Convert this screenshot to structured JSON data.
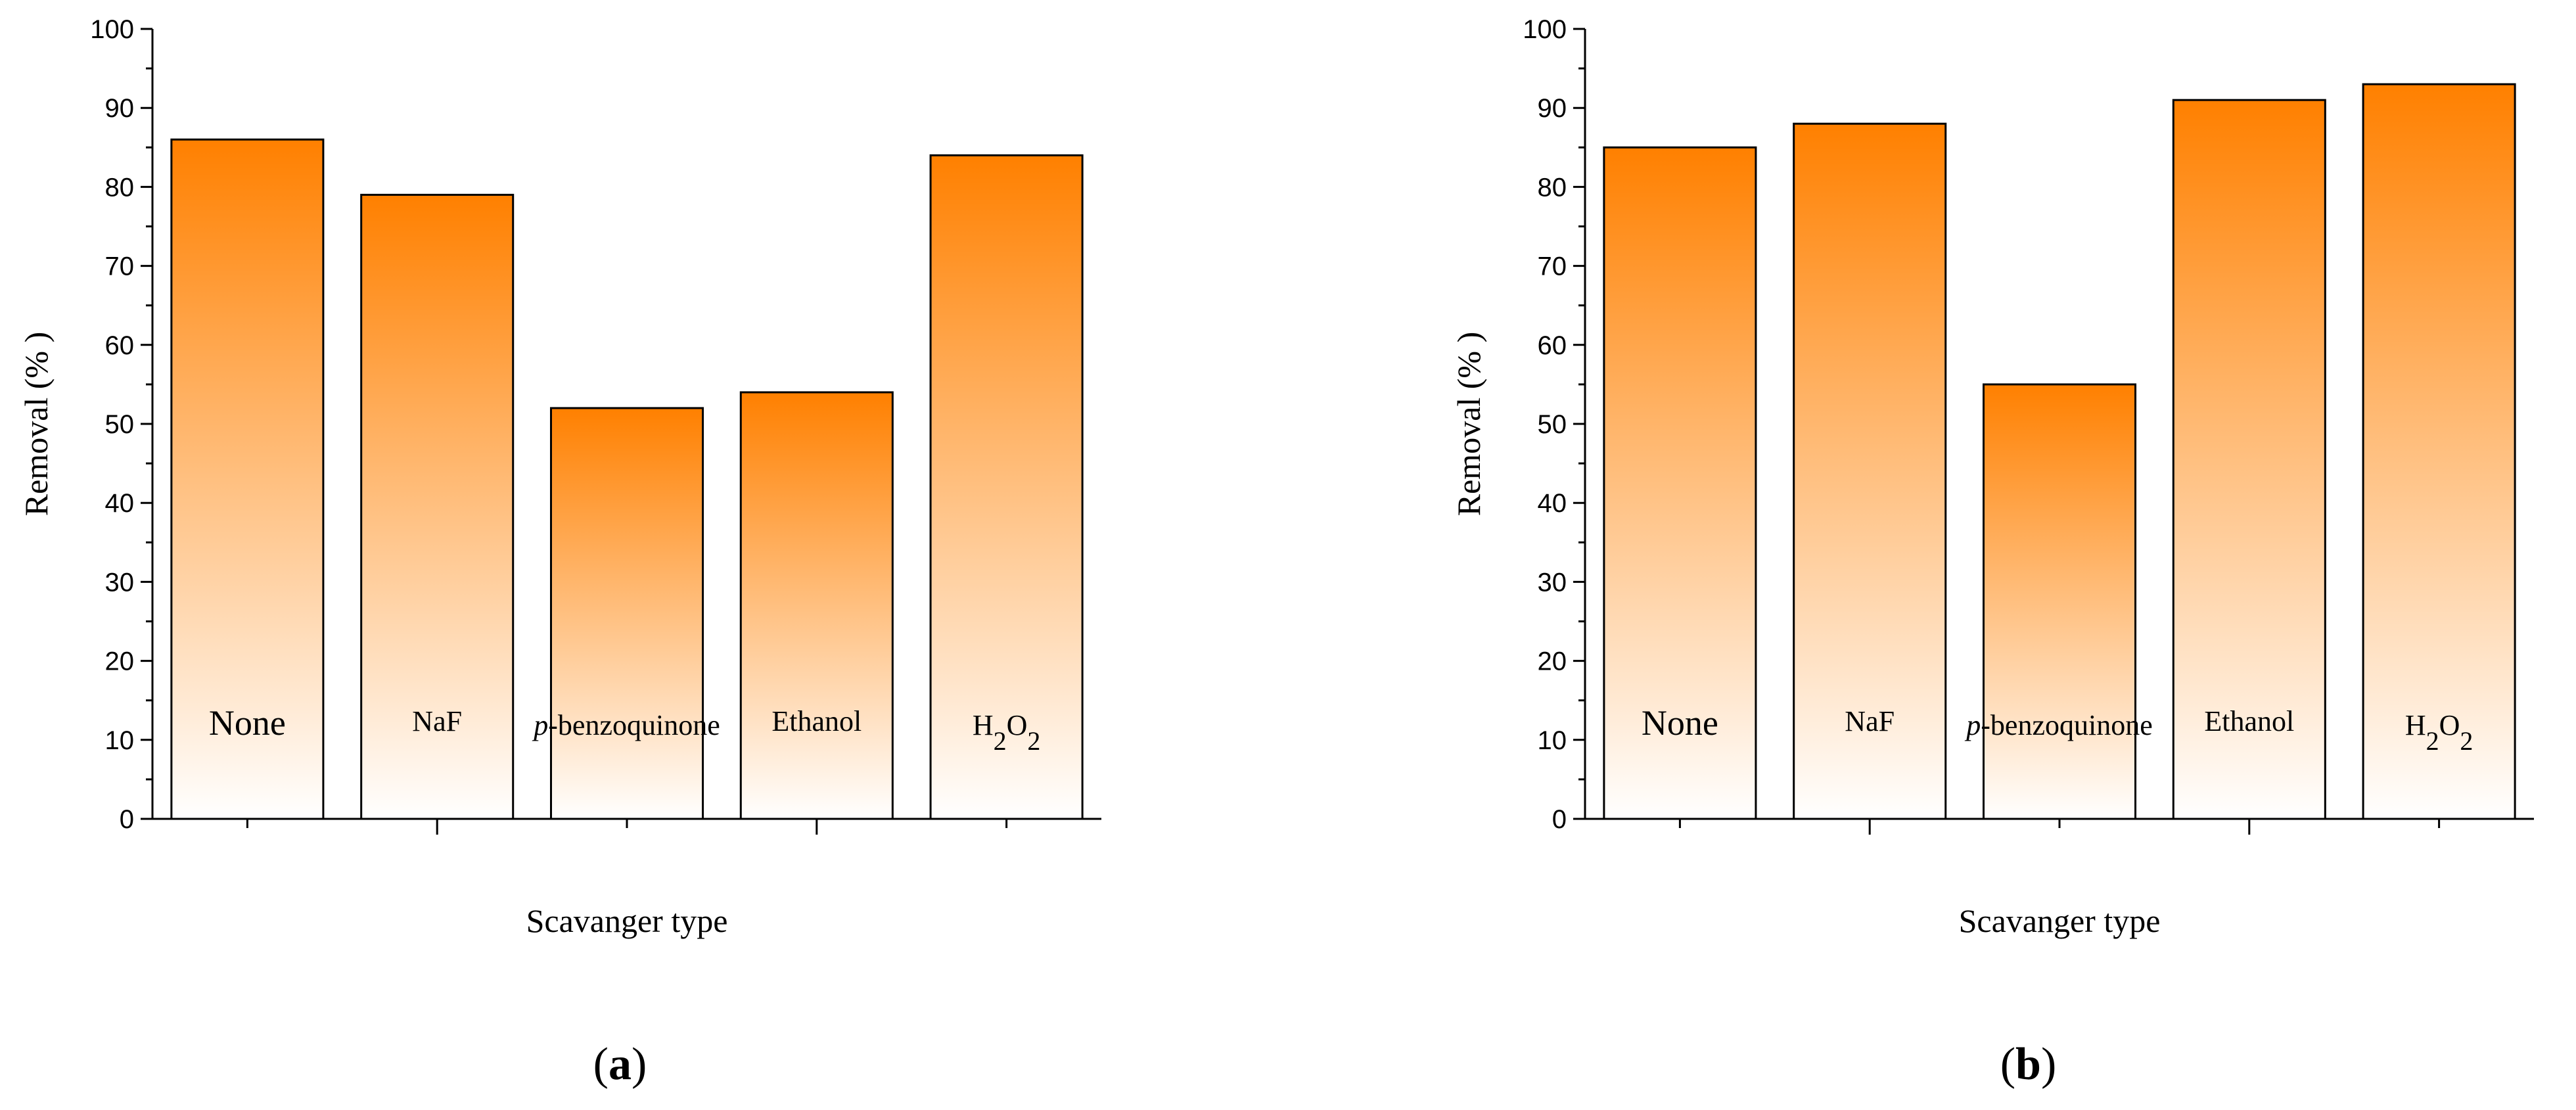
{
  "chart_data": [
    {
      "type": "bar",
      "panel_label": "a",
      "ylabel": "Removal (% )",
      "xlabel": "Scavanger type",
      "ylim": [
        0,
        100
      ],
      "yticks": [
        0,
        10,
        20,
        30,
        40,
        50,
        60,
        70,
        80,
        90,
        100
      ],
      "categories": [
        "None",
        "NaF",
        "p-benzoquinone",
        "Ethanol",
        "H2O2"
      ],
      "values": [
        86,
        79,
        52,
        54,
        84
      ],
      "bar_color": "#ff8000",
      "grid": false
    },
    {
      "type": "bar",
      "panel_label": "b",
      "ylabel": "Removal (% )",
      "xlabel": "Scavanger type",
      "ylim": [
        0,
        100
      ],
      "yticks": [
        0,
        10,
        20,
        30,
        40,
        50,
        60,
        70,
        80,
        90,
        100
      ],
      "categories": [
        "None",
        "NaF",
        "p-benzoquinone",
        "Ethanol",
        "H2O2"
      ],
      "values": [
        85,
        88,
        55,
        91,
        93
      ],
      "bar_color": "#ff8000",
      "grid": false
    }
  ]
}
